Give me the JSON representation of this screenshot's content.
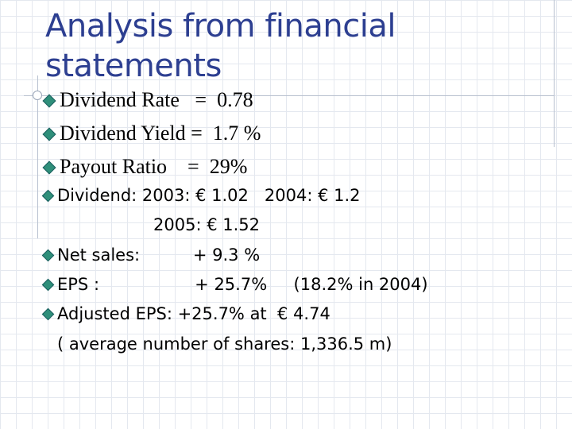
{
  "slide": {
    "title": "Analysis from financial statements",
    "primary_bullets": [
      "Dividend Rate   =  0.78",
      "Dividend Yield =  1.7 %",
      "Payout Ratio    =  29%"
    ],
    "secondary_bullets": [
      {
        "text": "Dividend: 2003: € 1.02   2004: € 1.2",
        "continuation": "2005: € 1.52"
      },
      {
        "text": "Net sales:          + 9.3 %"
      },
      {
        "text": "EPS :                  + 25.7%     (18.2% in 2004)"
      },
      {
        "text": "Adjusted EPS: +25.7% at  € 4.74",
        "continuation": "( average number of shares: 1,336.5 m)"
      }
    ]
  }
}
